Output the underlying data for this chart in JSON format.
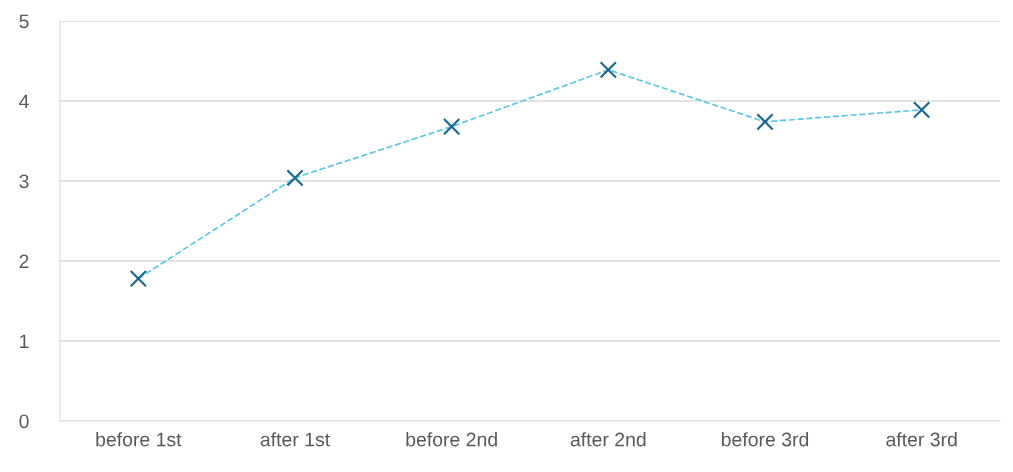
{
  "chart_data": {
    "type": "line",
    "categories": [
      "before 1st",
      "after 1st",
      "before 2nd",
      "after 2nd",
      "before 3rd",
      "after 3rd"
    ],
    "series": [
      {
        "color": "#5bc5ea",
        "colors": [
          "#17668f",
          "#17668f",
          "#17668f",
          "#17668f",
          "#17668f",
          "#17668f"
        ],
        "values": [
          1.78,
          3.04,
          3.68,
          4.39,
          3.74,
          3.89
        ]
      }
    ],
    "ylim": [
      0,
      5
    ],
    "yticks": [
      0,
      1,
      2,
      3,
      4,
      5
    ],
    "grid": "y",
    "marker": "cross",
    "line_style": "dashed",
    "legend": false
  }
}
